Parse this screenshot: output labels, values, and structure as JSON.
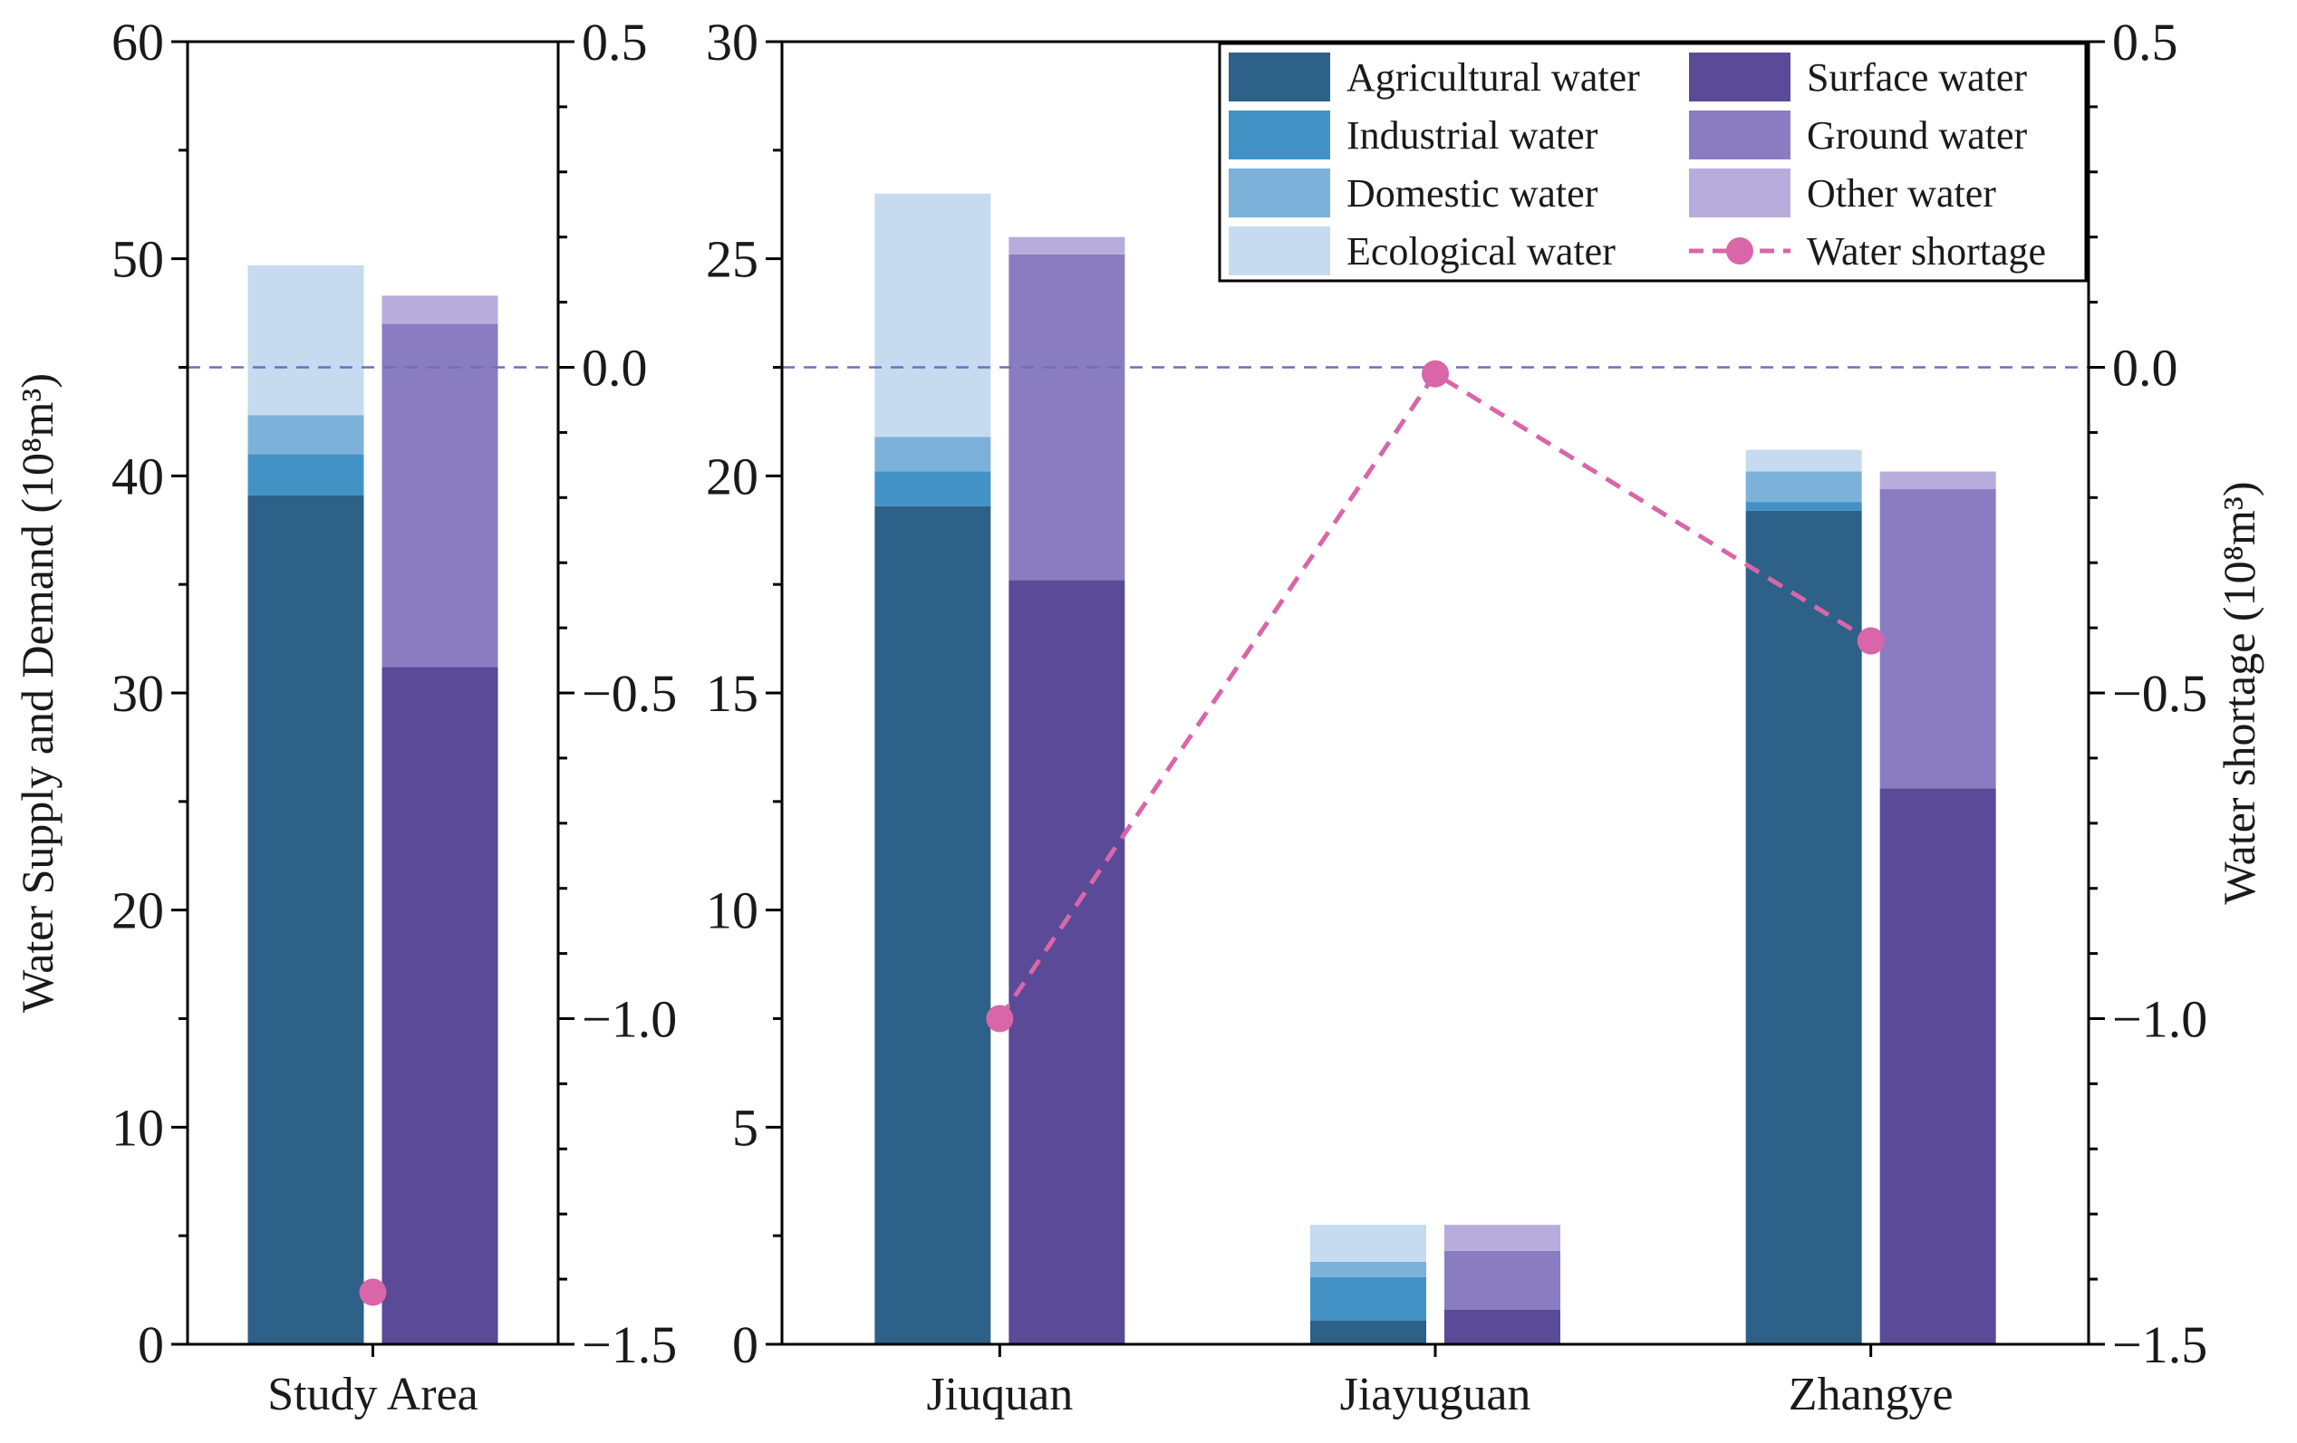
{
  "chart_data": {
    "type": "bar",
    "subtype": "stacked-bar-pairs-with-line",
    "legend_position": "top-right",
    "colors": {
      "Agricultural water": "#2d6187",
      "Industrial water": "#4292c6",
      "Domestic water": "#7cb2d9",
      "Ecological water": "#c6dbef",
      "Surface water": "#5a4a98",
      "Ground water": "#8a7cc1",
      "Other water": "#b8acdc",
      "Water shortage": "#d966a8",
      "zero_line": "#6c6fc0"
    },
    "legend": {
      "items": [
        {
          "label": "Agricultural water",
          "kind": "patch",
          "color_key": "Agricultural water"
        },
        {
          "label": "Surface water",
          "kind": "patch",
          "color_key": "Surface water"
        },
        {
          "label": "Industrial water",
          "kind": "patch",
          "color_key": "Industrial water"
        },
        {
          "label": "Ground water",
          "kind": "patch",
          "color_key": "Ground water"
        },
        {
          "label": "Domestic water",
          "kind": "patch",
          "color_key": "Domestic water"
        },
        {
          "label": "Other water",
          "kind": "patch",
          "color_key": "Other water"
        },
        {
          "label": "Ecological water",
          "kind": "patch",
          "color_key": "Ecological water"
        },
        {
          "label": "Water shortage",
          "kind": "line-marker",
          "color_key": "Water shortage"
        }
      ]
    },
    "panels": [
      {
        "name": "study-area",
        "ylabel": "Water Supply and Demand (10⁸m³)",
        "ylim": [
          0,
          60
        ],
        "yticks": [
          0,
          10,
          20,
          30,
          40,
          50,
          60
        ],
        "y2lim": [
          -1.5,
          0.5
        ],
        "y2ticks": [
          "−1.5",
          "−1.0",
          "−0.5",
          "0.0",
          "0.5"
        ],
        "y2tick_values": [
          -1.5,
          -1.0,
          -0.5,
          0.0,
          0.5
        ],
        "categories": [
          "Study Area"
        ],
        "demand": [
          {
            "name": "Agricultural water",
            "values": [
              39.1
            ]
          },
          {
            "name": "Industrial water",
            "values": [
              1.9
            ]
          },
          {
            "name": "Domestic water",
            "values": [
              1.8
            ]
          },
          {
            "name": "Ecological water",
            "values": [
              6.9
            ]
          }
        ],
        "supply": [
          {
            "name": "Surface water",
            "values": [
              31.2
            ]
          },
          {
            "name": "Ground water",
            "values": [
              15.8
            ]
          },
          {
            "name": "Other water",
            "values": [
              1.3
            ]
          }
        ],
        "shortage": [
          -1.42
        ]
      },
      {
        "name": "cities",
        "ylim": [
          0,
          30
        ],
        "yticks": [
          0,
          5,
          10,
          15,
          20,
          25,
          30
        ],
        "y2label": "Water shortage (10⁸m³)",
        "y2lim": [
          -1.5,
          0.5
        ],
        "y2ticks": [
          "−1.5",
          "−1.0",
          "−0.5",
          "0.0",
          "0.5"
        ],
        "y2tick_values": [
          -1.5,
          -1.0,
          -0.5,
          0.0,
          0.5
        ],
        "categories": [
          "Jiuquan",
          "Jiayuguan",
          "Zhangye"
        ],
        "demand": [
          {
            "name": "Agricultural water",
            "values": [
              19.3,
              0.55,
              19.2
            ]
          },
          {
            "name": "Industrial water",
            "values": [
              0.8,
              1.0,
              0.2
            ]
          },
          {
            "name": "Domestic water",
            "values": [
              0.8,
              0.35,
              0.7
            ]
          },
          {
            "name": "Ecological water",
            "values": [
              5.6,
              0.85,
              0.5
            ]
          }
        ],
        "supply": [
          {
            "name": "Surface water",
            "values": [
              17.6,
              0.8,
              12.8
            ]
          },
          {
            "name": "Ground water",
            "values": [
              7.5,
              1.35,
              6.9
            ]
          },
          {
            "name": "Other water",
            "values": [
              0.4,
              0.6,
              0.4
            ]
          }
        ],
        "shortage": [
          -1.0,
          -0.01,
          -0.42
        ],
        "shortage_line": "dashed"
      }
    ]
  }
}
